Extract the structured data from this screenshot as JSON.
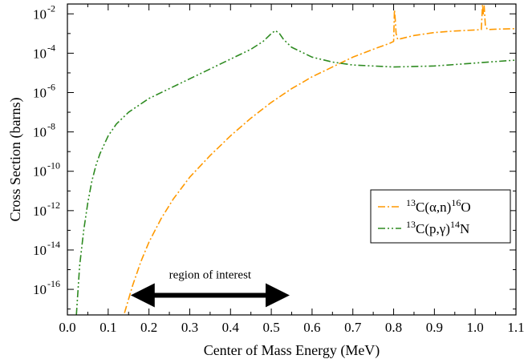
{
  "chart_data": {
    "type": "line",
    "title": "",
    "xlabel": "Center of Mass Energy (MeV)",
    "ylabel": "Cross Section (barns)",
    "xlim": [
      0.0,
      1.1
    ],
    "ylim_log10": [
      -17.3,
      -1.5
    ],
    "yscale": "log",
    "grid": false,
    "legend_position": "right",
    "x_ticks": [
      "0.0",
      "0.1",
      "0.2",
      "0.3",
      "0.4",
      "0.5",
      "0.6",
      "0.7",
      "0.8",
      "0.9",
      "1.0",
      "1.1"
    ],
    "y_ticks": [
      {
        "base": "10",
        "exp": "-2",
        "log": -2
      },
      {
        "base": "10",
        "exp": "-4",
        "log": -4
      },
      {
        "base": "10",
        "exp": "-6",
        "log": -6
      },
      {
        "base": "10",
        "exp": "-8",
        "log": -8
      },
      {
        "base": "10",
        "exp": "-10",
        "log": -10
      },
      {
        "base": "10",
        "exp": "-12",
        "log": -12
      },
      {
        "base": "10",
        "exp": "-14",
        "log": -14
      },
      {
        "base": "10",
        "exp": "-16",
        "log": -16
      }
    ],
    "series": [
      {
        "name": "13C(α,n)16O",
        "legend": {
          "pre": "13",
          "mid": "C(α,n)",
          "sup": "16",
          "post": "O"
        },
        "color": "#ff9900",
        "dash": "dash-dot",
        "x": [
          0.14,
          0.16,
          0.18,
          0.2,
          0.23,
          0.26,
          0.3,
          0.35,
          0.4,
          0.45,
          0.5,
          0.55,
          0.6,
          0.65,
          0.7,
          0.75,
          0.79,
          0.8,
          0.802,
          0.804,
          0.806,
          0.81,
          0.85,
          0.9,
          0.95,
          1.0,
          1.015,
          1.018,
          1.02,
          1.022,
          1.025,
          1.03,
          1.05,
          1.1
        ],
        "log10_y": [
          -17.2,
          -15.8,
          -14.6,
          -13.6,
          -12.4,
          -11.4,
          -10.3,
          -9.2,
          -8.2,
          -7.3,
          -6.5,
          -5.8,
          -5.2,
          -4.7,
          -4.2,
          -3.8,
          -3.5,
          -3.4,
          -1.8,
          -2.3,
          -3.0,
          -3.3,
          -3.1,
          -2.95,
          -2.87,
          -2.82,
          -2.8,
          -1.5,
          -2.0,
          -1.6,
          -2.6,
          -2.8,
          -2.78,
          -2.75
        ]
      },
      {
        "name": "13C(p,γ)14N",
        "legend": {
          "pre": "13",
          "mid": "C(p,γ)",
          "sup": "14",
          "post": "N"
        },
        "color": "#2e8b21",
        "dash": "dash-dot-dot",
        "x": [
          0.022,
          0.03,
          0.04,
          0.05,
          0.06,
          0.07,
          0.08,
          0.1,
          0.12,
          0.15,
          0.2,
          0.25,
          0.3,
          0.35,
          0.4,
          0.45,
          0.48,
          0.5,
          0.51,
          0.52,
          0.53,
          0.55,
          0.6,
          0.65,
          0.7,
          0.8,
          0.9,
          1.0,
          1.1
        ],
        "log10_y": [
          -17.3,
          -14.8,
          -13.0,
          -11.6,
          -10.5,
          -9.7,
          -9.1,
          -8.2,
          -7.6,
          -7.0,
          -6.3,
          -5.8,
          -5.3,
          -4.8,
          -4.3,
          -3.8,
          -3.4,
          -3.0,
          -2.85,
          -3.0,
          -3.3,
          -3.7,
          -4.2,
          -4.45,
          -4.6,
          -4.7,
          -4.65,
          -4.5,
          -4.35
        ]
      }
    ],
    "annotation": {
      "text": "region of interest",
      "arrow_from_x": 0.155,
      "arrow_to_x": 0.545,
      "arrow_log10_y": -16.3
    }
  }
}
